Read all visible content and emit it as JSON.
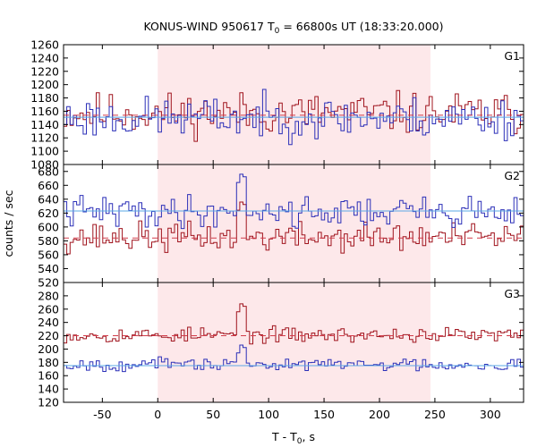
{
  "title": {
    "prefix": "KONUS-WIND 950617 T",
    "sub": "0",
    "suffix": " = 66800s UT (18:33:20.000)"
  },
  "xlabel": {
    "prefix": "T - T",
    "sub": "0",
    "suffix": ", s"
  },
  "ylabel": "counts / sec",
  "colors": {
    "red_series": "#a0141e",
    "blue_series": "#2b2fb8",
    "fit_red": "#d23c4a",
    "fit_blue": "#5aa8e6",
    "shade": "#fde8ea"
  },
  "chart_data": [
    {
      "type": "line",
      "panel": "G1",
      "title": "G1",
      "xlim": [
        -85,
        330
      ],
      "ylim": [
        1080,
        1260
      ],
      "yticks": [
        1080,
        1100,
        1120,
        1140,
        1160,
        1180,
        1200,
        1220,
        1240,
        1260
      ],
      "xticks": [
        -50,
        0,
        50,
        100,
        150,
        200,
        250,
        300
      ],
      "shaded_interval": [
        0,
        246
      ],
      "series": [
        {
          "color": "red",
          "mean": 1157,
          "noise": 22,
          "seed": 11
        },
        {
          "color": "blue",
          "mean": 1150,
          "noise": 22,
          "seed": 23
        }
      ],
      "fit_lines": [
        {
          "color": "red",
          "y": 1154,
          "dashed": true
        },
        {
          "color": "blue",
          "y": 1151,
          "dashed": false
        }
      ]
    },
    {
      "type": "line",
      "panel": "G2",
      "title": "G2",
      "xlim": [
        -85,
        330
      ],
      "ylim": [
        520,
        690
      ],
      "yticks": [
        520,
        540,
        560,
        580,
        600,
        620,
        640,
        660,
        680
      ],
      "xticks": [
        -50,
        0,
        50,
        100,
        150,
        200,
        250,
        300
      ],
      "shaded_interval": [
        0,
        246
      ],
      "series": [
        {
          "color": "red",
          "mean": 585,
          "noise": 15,
          "seed": 37,
          "peak": {
            "x": 75,
            "y": 640
          }
        },
        {
          "color": "blue",
          "mean": 622,
          "noise": 16,
          "seed": 41,
          "peak": {
            "x": 75,
            "y": 680
          }
        }
      ],
      "fit_lines": [
        {
          "color": "red",
          "y": 584,
          "dashed": true
        },
        {
          "color": "blue",
          "y": 623,
          "dashed": false
        }
      ]
    },
    {
      "type": "line",
      "panel": "G3",
      "title": "G3",
      "xlim": [
        -85,
        330
      ],
      "ylim": [
        120,
        300
      ],
      "yticks": [
        120,
        140,
        160,
        180,
        200,
        220,
        240,
        260,
        280
      ],
      "xticks": [
        -50,
        0,
        50,
        100,
        150,
        200,
        250,
        300
      ],
      "shaded_interval": [
        0,
        246
      ],
      "series": [
        {
          "color": "red",
          "mean": 221,
          "noise": 8,
          "seed": 53,
          "peak": {
            "x": 75,
            "y": 272
          }
        },
        {
          "color": "blue",
          "mean": 177,
          "noise": 7,
          "seed": 67,
          "peak": {
            "x": 75,
            "y": 210
          }
        }
      ],
      "fit_lines": [
        {
          "color": "red",
          "y": 220,
          "dashed": true
        },
        {
          "color": "blue",
          "y": 175,
          "dashed": false
        }
      ]
    }
  ]
}
